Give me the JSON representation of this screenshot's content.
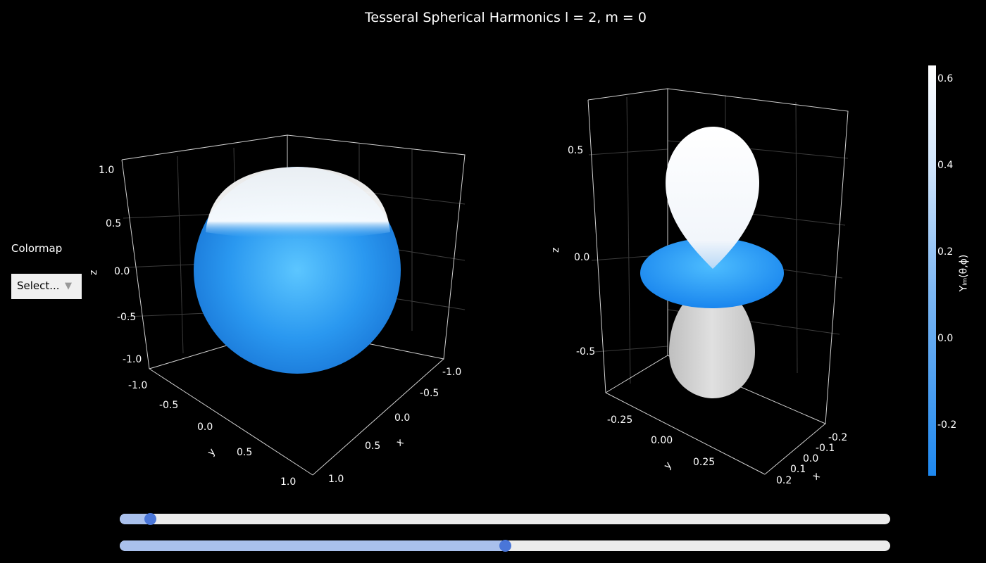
{
  "title": "Tesseral Spherical Harmonics l = 2, m = 0",
  "colormap": {
    "label": "Colormap",
    "select_value": "Select..."
  },
  "left_plot": {
    "axis_z": "z",
    "axis_y": "y",
    "axis_x": "x",
    "z_ticks": [
      "1.0",
      "0.5",
      "0.0",
      "-0.5",
      "-1.0"
    ],
    "y_ticks": [
      "-1.0",
      "-0.5",
      "0.0",
      "0.5",
      "1.0"
    ],
    "x_ticks": [
      "-1.0",
      "-0.5",
      "0.0",
      "0.5",
      "1.0"
    ]
  },
  "right_plot": {
    "axis_z": "z",
    "axis_y": "y",
    "axis_x": "x",
    "z_ticks": [
      "0.5",
      "0.0",
      "-0.5"
    ],
    "y_ticks": [
      "-0.25",
      "0.00",
      "0.25"
    ],
    "x_ticks": [
      "-0.2",
      "-0.1",
      "0.0",
      "0.1",
      "0.2"
    ]
  },
  "colorbar": {
    "title": "Yₗₘ(θ,ϕ)",
    "ticks": [
      "0.6",
      "0.4",
      "0.2",
      "0.0",
      "-0.2"
    ],
    "colors": [
      "#ffffff",
      "#1e88ef"
    ]
  },
  "sliders": [
    {
      "name": "l-slider",
      "fraction": 0.04
    },
    {
      "name": "m-slider",
      "fraction": 0.5
    }
  ]
}
